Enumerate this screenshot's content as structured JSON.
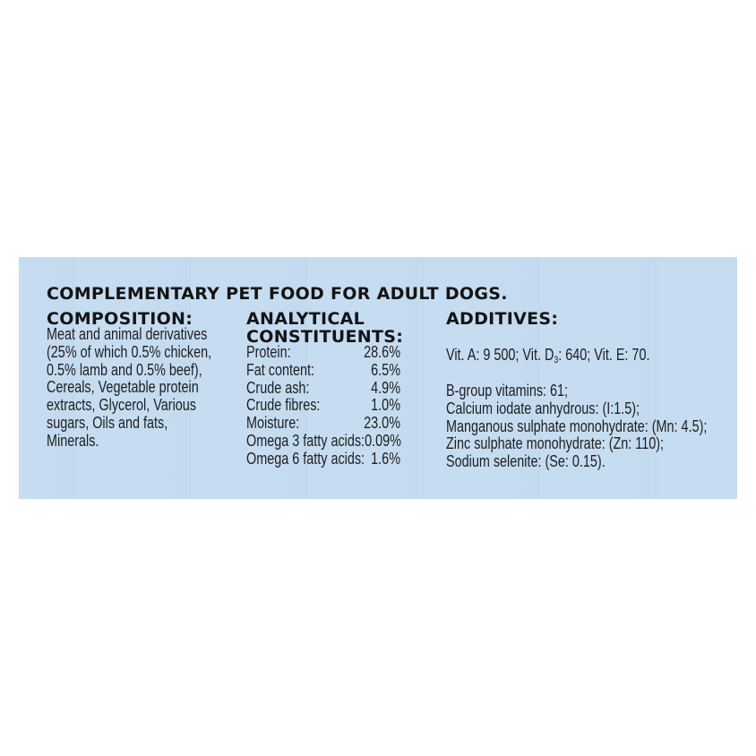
{
  "title": "COMPLEMENTARY PET FOOD FOR ADULT DOGS.",
  "composition": {
    "heading": "COMPOSITION:",
    "lines": [
      "Meat and animal derivatives",
      "(25% of which 0.5% chicken,",
      "0.5% lamb and 0.5% beef),",
      "Cereals, Vegetable protein",
      "extracts, Glycerol, Various",
      "sugars, Oils and fats,",
      "Minerals."
    ]
  },
  "analytical": {
    "heading_line1": "ANALYTICAL",
    "heading_line2": "CONSTITUENTS:",
    "rows": [
      {
        "label": "Protein:",
        "value": "28.6%"
      },
      {
        "label": "Fat content:",
        "value": "6.5%"
      },
      {
        "label": "Crude ash:",
        "value": "4.9%"
      },
      {
        "label": "Crude fibres:",
        "value": "1.0%"
      },
      {
        "label": "Moisture:",
        "value": "23.0%"
      },
      {
        "label": "Omega 3 fatty acids:",
        "value": "0.09%"
      },
      {
        "label": "Omega 6 fatty acids:",
        "value": "1.6%"
      }
    ]
  },
  "additives": {
    "heading": "ADDITIVES:",
    "vit_a": "Vit. A: 9 500; Vit. D",
    "vit_d_sub": "3",
    "vit_rest": ": 640; Vit. E: 70.",
    "lines": [
      "B-group vitamins: 61;",
      "Calcium iodate anhydrous: (I:1.5);",
      "Manganous sulphate monohydrate: (Mn: 4.5);",
      "Zinc sulphate monohydrate: (Zn: 110);",
      "Sodium selenite: (Se: 0.15)."
    ]
  }
}
